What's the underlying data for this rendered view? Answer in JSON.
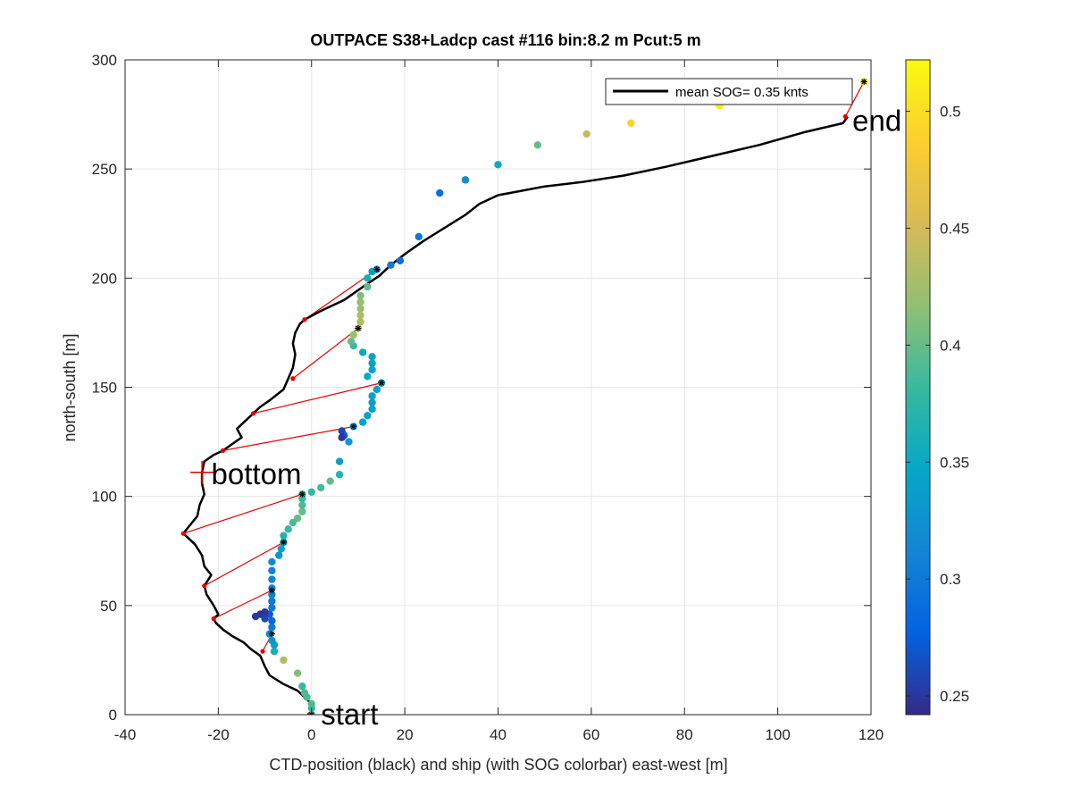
{
  "chart_data": {
    "type": "scatter",
    "title": "OUTPACE S38+Ladcp cast #116 bin:8.2 m  Pcut:5 m",
    "xlabel": "CTD-position (black) and ship (with SOG colorbar) east-west [m]",
    "ylabel": "north-south [m]",
    "xlim": [
      -40,
      120
    ],
    "ylim": [
      0,
      300
    ],
    "xticks": [
      "-40",
      "-20",
      "0",
      "20",
      "40",
      "60",
      "80",
      "100",
      "120"
    ],
    "yticks": [
      "0",
      "50",
      "100",
      "150",
      "200",
      "250",
      "300"
    ],
    "grid": true,
    "legend": {
      "label": "mean SOG=  0.35 knts",
      "location": "top-right"
    },
    "colorbar": {
      "range": [
        0.242,
        0.522
      ],
      "ticks": [
        "0.25",
        "0.3",
        "0.35",
        "0.4",
        "0.45",
        "0.5"
      ],
      "colormap": "parula"
    },
    "annotations": [
      {
        "text": "start",
        "x": 2,
        "y": 0
      },
      {
        "text": "bottom",
        "x": -21.5,
        "y": 110
      },
      {
        "text": "end",
        "x": 116,
        "y": 272
      }
    ],
    "bottom_marker": {
      "x": -23.5,
      "y": 111
    },
    "ctd_track": [
      [
        0,
        0
      ],
      [
        -0.5,
        6
      ],
      [
        -3,
        11
      ],
      [
        -6,
        14
      ],
      [
        -9,
        18
      ],
      [
        -10,
        22
      ],
      [
        -11,
        27
      ],
      [
        -13,
        30
      ],
      [
        -14.5,
        33
      ],
      [
        -17,
        36
      ],
      [
        -19,
        39
      ],
      [
        -20.5,
        42
      ],
      [
        -21,
        44
      ],
      [
        -20,
        46
      ],
      [
        -21,
        50
      ],
      [
        -22.5,
        55
      ],
      [
        -23,
        59
      ],
      [
        -21.5,
        64
      ],
      [
        -23,
        68
      ],
      [
        -23.5,
        73
      ],
      [
        -25,
        78
      ],
      [
        -26.5,
        81
      ],
      [
        -27.5,
        83
      ],
      [
        -26,
        87
      ],
      [
        -24.5,
        91
      ],
      [
        -24,
        96
      ],
      [
        -23,
        101
      ],
      [
        -23.5,
        106
      ],
      [
        -23.5,
        111
      ],
      [
        -23,
        116
      ],
      [
        -21,
        119
      ],
      [
        -19,
        121
      ],
      [
        -17,
        124
      ],
      [
        -15,
        127
      ],
      [
        -16,
        131
      ],
      [
        -14.5,
        134
      ],
      [
        -12.5,
        138
      ],
      [
        -11,
        141
      ],
      [
        -9,
        144
      ],
      [
        -6,
        149
      ],
      [
        -5,
        154
      ],
      [
        -4,
        159
      ],
      [
        -3.5,
        165
      ],
      [
        -4,
        170
      ],
      [
        -3.5,
        175
      ],
      [
        -2.5,
        179
      ],
      [
        -1.5,
        181
      ],
      [
        2,
        185
      ],
      [
        7,
        190
      ],
      [
        11,
        196
      ],
      [
        14.5,
        201
      ],
      [
        17,
        206
      ],
      [
        20,
        211
      ],
      [
        24,
        217
      ],
      [
        27,
        221
      ],
      [
        30,
        225
      ],
      [
        33,
        229
      ],
      [
        36,
        234
      ],
      [
        40,
        238
      ],
      [
        45,
        240
      ],
      [
        50,
        242
      ],
      [
        58,
        244
      ],
      [
        67,
        247
      ],
      [
        76,
        251
      ],
      [
        86,
        256
      ],
      [
        96,
        261
      ],
      [
        106,
        267
      ],
      [
        114,
        271
      ],
      [
        115,
        274
      ]
    ],
    "ship_points": [
      [
        0,
        0,
        0.38
      ],
      [
        0,
        3,
        0.38
      ],
      [
        0,
        5,
        0.39
      ],
      [
        -1,
        8,
        0.39
      ],
      [
        -1.5,
        10,
        0.39
      ],
      [
        -2,
        13,
        0.38
      ],
      [
        -3,
        19,
        0.41
      ],
      [
        -6,
        25,
        0.43
      ],
      [
        -8,
        29,
        0.36
      ],
      [
        -8,
        32,
        0.34
      ],
      [
        -8.5,
        34,
        0.33
      ],
      [
        -9,
        37,
        0.32
      ],
      [
        -8.5,
        40,
        0.3
      ],
      [
        -8.5,
        43,
        0.28
      ],
      [
        -9,
        46,
        0.27
      ],
      [
        -10,
        47,
        0.25
      ],
      [
        -11,
        46,
        0.245
      ],
      [
        -12,
        45,
        0.25
      ],
      [
        -10,
        44,
        0.26
      ],
      [
        -8.5,
        49,
        0.3
      ],
      [
        -8.5,
        52,
        0.3
      ],
      [
        -8.5,
        55,
        0.31
      ],
      [
        -8.5,
        58,
        0.31
      ],
      [
        -8.5,
        62,
        0.31
      ],
      [
        -8.5,
        66,
        0.31
      ],
      [
        -8.5,
        70,
        0.32
      ],
      [
        -7,
        73,
        0.33
      ],
      [
        -6.5,
        76,
        0.34
      ],
      [
        -6,
        79,
        0.35
      ],
      [
        -6,
        82,
        0.37
      ],
      [
        -5,
        85,
        0.38
      ],
      [
        -4,
        88,
        0.39
      ],
      [
        -3,
        90,
        0.4
      ],
      [
        -2,
        93,
        0.4
      ],
      [
        -2,
        96,
        0.39
      ],
      [
        -2,
        99,
        0.38
      ],
      [
        -2,
        101,
        0.37
      ],
      [
        0,
        102,
        0.38
      ],
      [
        2,
        104,
        0.39
      ],
      [
        4,
        107,
        0.4
      ],
      [
        6,
        110,
        0.37
      ],
      [
        6,
        116,
        0.34
      ],
      [
        8,
        125,
        0.33
      ],
      [
        7,
        128,
        0.28
      ],
      [
        6.5,
        130,
        0.26
      ],
      [
        6.5,
        127,
        0.25
      ],
      [
        9,
        132,
        0.34
      ],
      [
        11,
        134,
        0.34
      ],
      [
        12,
        137,
        0.34
      ],
      [
        13,
        140,
        0.34
      ],
      [
        13,
        143,
        0.34
      ],
      [
        13,
        146,
        0.34
      ],
      [
        14,
        149,
        0.34
      ],
      [
        15,
        152,
        0.34
      ],
      [
        12,
        155,
        0.35
      ],
      [
        13,
        158,
        0.34
      ],
      [
        13,
        161,
        0.34
      ],
      [
        13,
        164,
        0.34
      ],
      [
        11,
        166,
        0.35
      ],
      [
        9,
        169,
        0.38
      ],
      [
        8.5,
        171,
        0.4
      ],
      [
        9,
        174,
        0.42
      ],
      [
        10,
        177,
        0.44
      ],
      [
        10.5,
        180,
        0.43
      ],
      [
        10.5,
        183,
        0.43
      ],
      [
        10.5,
        186,
        0.42
      ],
      [
        10.5,
        189,
        0.42
      ],
      [
        10.5,
        192,
        0.41
      ],
      [
        12,
        196,
        0.4
      ],
      [
        12,
        200,
        0.36
      ],
      [
        13,
        203,
        0.34
      ],
      [
        14,
        204,
        0.32
      ],
      [
        17,
        206,
        0.3
      ],
      [
        19,
        208,
        0.29
      ],
      [
        23,
        219,
        0.3
      ],
      [
        27.5,
        239,
        0.29
      ],
      [
        33,
        245,
        0.32
      ],
      [
        40,
        252,
        0.35
      ],
      [
        48.5,
        261,
        0.4
      ],
      [
        59,
        266,
        0.44
      ],
      [
        68.5,
        271,
        0.49
      ],
      [
        87.5,
        279,
        0.51
      ],
      [
        118.5,
        290,
        0.52
      ]
    ],
    "connections": [
      {
        "ctd": [
          -0.5,
          0
        ],
        "ship": [
          0,
          0
        ]
      },
      {
        "ctd": [
          -10.5,
          29
        ],
        "ship": [
          -8.5,
          37
        ]
      },
      {
        "ctd": [
          -21,
          44
        ],
        "ship": [
          -8.5,
          57
        ]
      },
      {
        "ctd": [
          -23,
          59
        ],
        "ship": [
          -6,
          79
        ]
      },
      {
        "ctd": [
          -27.5,
          83
        ],
        "ship": [
          -2,
          101
        ]
      },
      {
        "ctd": [
          -19,
          121
        ],
        "ship": [
          9,
          132
        ]
      },
      {
        "ctd": [
          -12.5,
          138
        ],
        "ship": [
          15,
          152
        ]
      },
      {
        "ctd": [
          -4,
          154
        ],
        "ship": [
          10,
          177
        ]
      },
      {
        "ctd": [
          -1.5,
          181
        ],
        "ship": [
          14,
          204
        ]
      },
      {
        "ctd": [
          114.5,
          274
        ],
        "ship": [
          118.5,
          290
        ]
      }
    ]
  }
}
